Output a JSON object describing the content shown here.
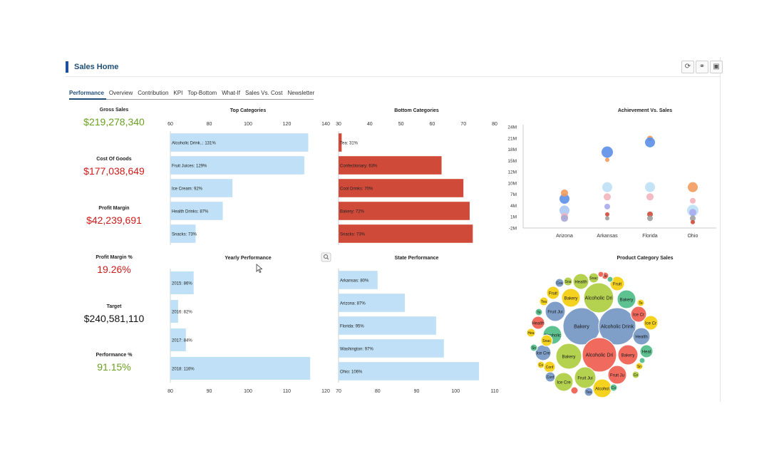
{
  "header": {
    "title": "Sales Home"
  },
  "toolbar": {
    "refresh_icon": "refresh-icon",
    "link_icon": "link-icon",
    "save_icon": "save-icon"
  },
  "tabs": [
    {
      "label": "Performance",
      "active": true
    },
    {
      "label": "Overview"
    },
    {
      "label": "Contribution"
    },
    {
      "label": "KPI"
    },
    {
      "label": "Top-Bottom"
    },
    {
      "label": "What-If"
    },
    {
      "label": "Sales Vs. Cost"
    },
    {
      "label": "Newsletter"
    }
  ],
  "kpis": [
    {
      "label": "Gross Sales",
      "value": "$219,278,340",
      "color": "#6aa121"
    },
    {
      "label": "Cost Of Goods",
      "value": "$177,038,649",
      "color": "#d01a1a"
    },
    {
      "label": "Profit Margin",
      "value": "$42,239,691",
      "color": "#d01a1a"
    },
    {
      "label": "Profit Margin %",
      "value": "19.26%",
      "color": "#d01a1a"
    },
    {
      "label": "Target",
      "value": "$240,581,110",
      "color": "#111111"
    },
    {
      "label": "Performance %",
      "value": "91.15%",
      "color": "#6aa121"
    }
  ],
  "colors": {
    "light_bar": "#bfe0f6",
    "red_bar": "#d04a3a",
    "accent": "#1f4e9e"
  },
  "chart_data": [
    {
      "id": "top",
      "type": "bar",
      "orientation": "horizontal",
      "title": "Top Categories",
      "xlim": [
        60,
        140
      ],
      "ticks": [
        "60",
        "80",
        "100",
        "120",
        "140"
      ],
      "categories": [
        "Alcoholic Drink..: 131%",
        "Fruit Juices: 129%",
        "Ice Cream: 92%",
        "Health Drinks: 87%",
        "Snacks: 73%"
      ],
      "values": [
        131,
        129,
        92,
        87,
        73
      ],
      "color": "#bfe0f6"
    },
    {
      "id": "bottom",
      "type": "bar",
      "orientation": "horizontal",
      "title": "Bottom Categories",
      "xlim": [
        30,
        80
      ],
      "ticks": [
        "30",
        "40",
        "50",
        "60",
        "70",
        "80"
      ],
      "categories": [
        "Tea: 31%",
        "Confectionary: 63%",
        "Cool Drinks: 70%",
        "Bakery: 72%",
        "Snacks: 73%"
      ],
      "values": [
        31,
        63,
        70,
        72,
        73
      ],
      "color": "#d04a3a"
    },
    {
      "id": "yearly",
      "type": "bar",
      "orientation": "horizontal",
      "title": "Yearly Performance",
      "xlim": [
        80,
        120
      ],
      "ticks": [
        "80",
        "90",
        "100",
        "110",
        "120"
      ],
      "categories": [
        "2015: 86%",
        "2016: 82%",
        "2017: 84%",
        "2018: 116%"
      ],
      "values": [
        86,
        82,
        84,
        116
      ],
      "color": "#bfe0f6"
    },
    {
      "id": "state",
      "type": "bar",
      "orientation": "horizontal",
      "title": "State Performance",
      "xlim": [
        70,
        110
      ],
      "ticks": [
        "70",
        "80",
        "90",
        "100",
        "110"
      ],
      "categories": [
        "Arkansas: 80%",
        "Arizona: 87%",
        "Florida: 95%",
        "Washington: 97%",
        "Ohio: 106%"
      ],
      "values": [
        80,
        87,
        95,
        97,
        106
      ],
      "color": "#bfe0f6"
    },
    {
      "id": "achieve",
      "type": "scatter",
      "title": "Achievement Vs. Sales",
      "ylim": [
        -2,
        24
      ],
      "yticks": [
        "24M",
        "21M",
        "18M",
        "15M",
        "12M",
        "10M",
        "7M",
        "4M",
        "1M",
        "-2M"
      ],
      "categories": [
        "Arizona",
        "Arkansas",
        "Florida",
        "Ohio"
      ],
      "points": [
        {
          "cat": 0,
          "y": 5.5,
          "r": 7,
          "color": "#5b8fe8"
        },
        {
          "cat": 0,
          "y": 7.0,
          "r": 5,
          "color": "#f39b5e"
        },
        {
          "cat": 0,
          "y": 2.5,
          "r": 7,
          "color": "#a9c8f2"
        },
        {
          "cat": 0,
          "y": 1.0,
          "r": 5,
          "color": "#f3b4bd"
        },
        {
          "cat": 0,
          "y": 0.5,
          "r": 5,
          "color": "#a8a8d8"
        },
        {
          "cat": 1,
          "y": 17.5,
          "r": 8,
          "color": "#5b8fe8"
        },
        {
          "cat": 1,
          "y": 15.5,
          "r": 3,
          "color": "#f39b5e"
        },
        {
          "cat": 1,
          "y": 8.5,
          "r": 7,
          "color": "#bfe0f6"
        },
        {
          "cat": 1,
          "y": 6.0,
          "r": 5,
          "color": "#f3b4bd"
        },
        {
          "cat": 1,
          "y": 3.5,
          "r": 4,
          "color": "#a8a8ee"
        },
        {
          "cat": 1,
          "y": 1.5,
          "r": 3,
          "color": "#d04a3a"
        },
        {
          "cat": 1,
          "y": 0.5,
          "r": 3,
          "color": "#a0a0a0"
        },
        {
          "cat": 2,
          "y": 21.0,
          "r": 4,
          "color": "#f39b5e"
        },
        {
          "cat": 2,
          "y": 20.0,
          "r": 7,
          "color": "#5b8fe8"
        },
        {
          "cat": 2,
          "y": 8.5,
          "r": 7,
          "color": "#bfe0f6"
        },
        {
          "cat": 2,
          "y": 6.0,
          "r": 5,
          "color": "#f3b4bd"
        },
        {
          "cat": 2,
          "y": 1.5,
          "r": 4,
          "color": "#d04a3a"
        },
        {
          "cat": 2,
          "y": 0.5,
          "r": 4,
          "color": "#a0a0a0"
        },
        {
          "cat": 3,
          "y": 8.5,
          "r": 7,
          "color": "#f39b5e"
        },
        {
          "cat": 3,
          "y": 5.0,
          "r": 4,
          "color": "#f3b4bd"
        },
        {
          "cat": 3,
          "y": 2.5,
          "r": 8,
          "color": "#bfe0f6"
        },
        {
          "cat": 3,
          "y": 2.0,
          "r": 5,
          "color": "#a8a8ee"
        },
        {
          "cat": 3,
          "y": 0.5,
          "r": 4,
          "color": "#a0a0a0"
        },
        {
          "cat": 3,
          "y": -0.5,
          "r": 3,
          "color": "#d04a3a"
        }
      ]
    },
    {
      "id": "bubbles",
      "type": "bubble",
      "title": "Product Category Sales",
      "bubbles": [
        {
          "label": "Bakery",
          "cx": 816,
          "cy": 458,
          "r": 26,
          "color": "#7f9fc8"
        },
        {
          "label": "Alcoholic Drink",
          "cx": 866,
          "cy": 458,
          "r": 26,
          "color": "#7f9fc8"
        },
        {
          "label": "Alcoholic Dri",
          "cx": 840,
          "cy": 418,
          "r": 21,
          "color": "#b5d150"
        },
        {
          "label": "Alcoholic Dri",
          "cx": 841,
          "cy": 498,
          "r": 24,
          "color": "#f06b5e"
        },
        {
          "label": "Bakery",
          "cx": 798,
          "cy": 500,
          "r": 18,
          "color": "#b5d150"
        },
        {
          "label": "Fruit Jui",
          "cx": 779,
          "cy": 437,
          "r": 14,
          "color": "#7f9fc8"
        },
        {
          "label": "Bakery",
          "cx": 801,
          "cy": 418,
          "r": 13,
          "color": "#f5d21f"
        },
        {
          "label": "Bakery",
          "cx": 879,
          "cy": 420,
          "r": 13,
          "color": "#5ec290"
        },
        {
          "label": "Ice Cr",
          "cx": 896,
          "cy": 441,
          "r": 11,
          "color": "#f06b5e"
        },
        {
          "label": "Ice Cr",
          "cx": 913,
          "cy": 453,
          "r": 10,
          "color": "#f5d21f"
        },
        {
          "label": "Health",
          "cx": 900,
          "cy": 472,
          "r": 12,
          "color": "#7f9fc8"
        },
        {
          "label": "Bakery",
          "cx": 881,
          "cy": 498,
          "r": 14,
          "color": "#f06b5e"
        },
        {
          "label": "Heal",
          "cx": 907,
          "cy": 493,
          "r": 9,
          "color": "#5ec290"
        },
        {
          "label": "Fruit Ju",
          "cx": 866,
          "cy": 526,
          "r": 13,
          "color": "#f06b5e"
        },
        {
          "label": "Fruit Jui",
          "cx": 821,
          "cy": 530,
          "r": 15,
          "color": "#b5d150"
        },
        {
          "label": "Ice Cre",
          "cx": 791,
          "cy": 536,
          "r": 13,
          "color": "#b5d150"
        },
        {
          "label": "Alcohol",
          "cx": 845,
          "cy": 545,
          "r": 13,
          "color": "#f5d21f"
        },
        {
          "label": "Alcoholic",
          "cx": 775,
          "cy": 470,
          "r": 13,
          "color": "#5ec290"
        },
        {
          "label": "Ice Cre",
          "cx": 762,
          "cy": 495,
          "r": 11,
          "color": "#7f9fc8"
        },
        {
          "label": "Health",
          "cx": 815,
          "cy": 395,
          "r": 11,
          "color": "#b5d150"
        },
        {
          "label": "Fruit",
          "cx": 866,
          "cy": 398,
          "r": 10,
          "color": "#f5d21f"
        },
        {
          "label": "Fruit",
          "cx": 776,
          "cy": 411,
          "r": 9,
          "color": "#f5d21f"
        },
        {
          "label": "Health",
          "cx": 755,
          "cy": 453,
          "r": 9,
          "color": "#f06b5e"
        },
        {
          "label": "Snac",
          "cx": 767,
          "cy": 478,
          "r": 8,
          "color": "#f5d21f"
        },
        {
          "label": "Conf",
          "cx": 771,
          "cy": 515,
          "r": 8,
          "color": "#f5d21f"
        },
        {
          "label": "Conf",
          "cx": 772,
          "cy": 529,
          "r": 7,
          "color": "#7f9fc8"
        },
        {
          "label": "Snac",
          "cx": 833,
          "cy": 390,
          "r": 7,
          "color": "#b5d150"
        },
        {
          "label": "Coo",
          "cx": 785,
          "cy": 397,
          "r": 6,
          "color": "#7f9fc8"
        },
        {
          "label": "Sna",
          "cx": 797,
          "cy": 395,
          "r": 6,
          "color": "#b5d150"
        },
        {
          "label": "Tea",
          "cx": 763,
          "cy": 423,
          "r": 6,
          "color": "#f5d21f"
        },
        {
          "label": "Te",
          "cx": 899,
          "cy": 425,
          "r": 5,
          "color": "#f5d21f"
        },
        {
          "label": "Te",
          "cx": 849,
          "cy": 387,
          "r": 5,
          "color": "#f06b5e"
        },
        {
          "label": "Tea",
          "cx": 826,
          "cy": 550,
          "r": 6,
          "color": "#7f9fc8"
        },
        {
          "label": "Sn",
          "cx": 897,
          "cy": 514,
          "r": 5,
          "color": "#f5d21f"
        },
        {
          "label": "Co",
          "cx": 861,
          "cy": 544,
          "r": 5,
          "color": "#5ec290"
        },
        {
          "label": "Co",
          "cx": 759,
          "cy": 512,
          "r": 5,
          "color": "#f5d21f"
        },
        {
          "label": "Hea",
          "cx": 745,
          "cy": 467,
          "r": 6,
          "color": "#f5d21f"
        },
        {
          "label": "Te",
          "cx": 756,
          "cy": 438,
          "r": 5,
          "color": "#5ec290"
        },
        {
          "label": "Sn",
          "cx": 749,
          "cy": 488,
          "r": 5,
          "color": "#5ec290"
        },
        {
          "label": "Co",
          "cx": 892,
          "cy": 526,
          "r": 5,
          "color": "#b5d150"
        },
        {
          "label": "",
          "cx": 806,
          "cy": 548,
          "r": 5,
          "color": "#f06b5e"
        },
        {
          "label": "",
          "cx": 843,
          "cy": 385,
          "r": 4,
          "color": "#f06b5e"
        },
        {
          "label": "",
          "cx": 856,
          "cy": 392,
          "r": 4,
          "color": "#5ec290"
        },
        {
          "label": "",
          "cx": 901,
          "cy": 506,
          "r": 4,
          "color": "#5ec290"
        }
      ]
    }
  ]
}
